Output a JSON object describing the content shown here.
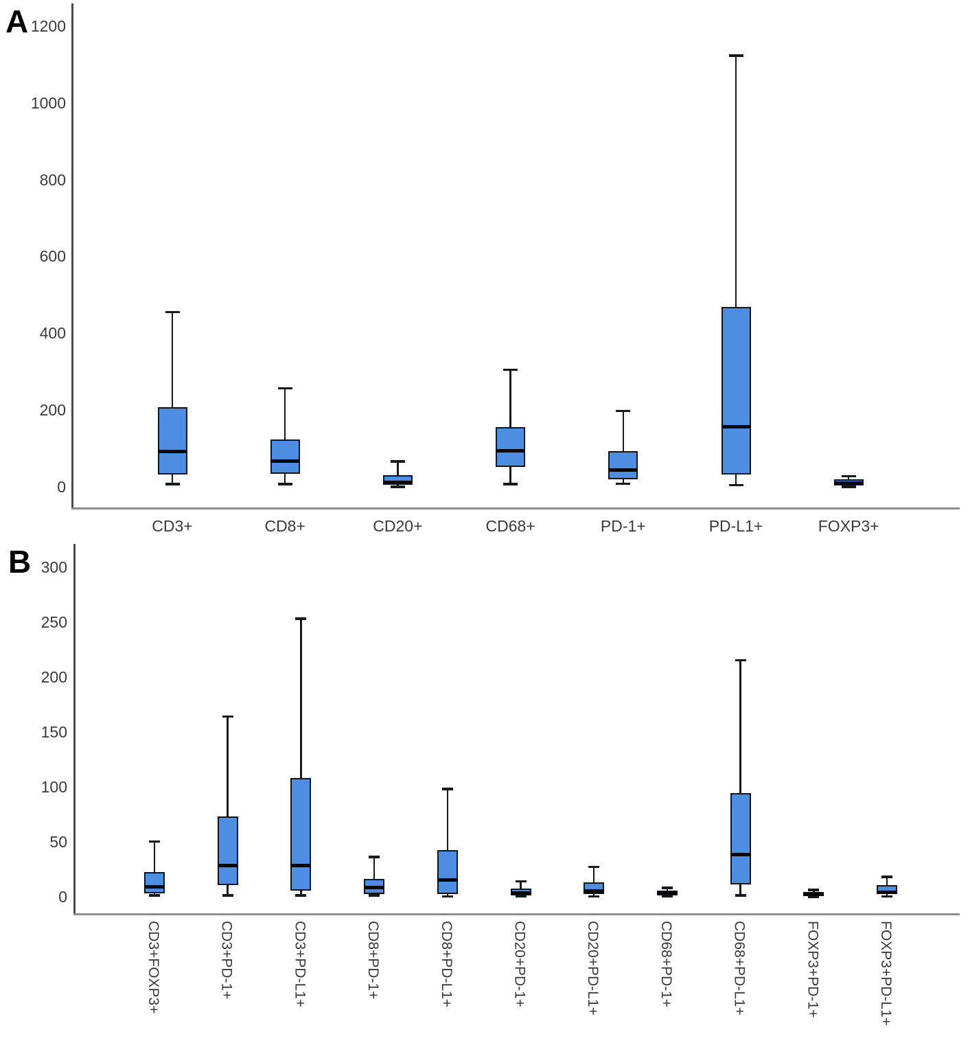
{
  "figure": {
    "panels": [
      {
        "label": "A"
      },
      {
        "label": "B"
      }
    ]
  },
  "style": {
    "box_fill": "#4D8EE3",
    "box_border": "#10151b",
    "median_color": "#04060a",
    "whisker_color": "#16191e",
    "axis_color": "#4a4a4a",
    "baseline_color": "#8e8e8e",
    "text_color": "#3a3a3a",
    "background": "#ffffff"
  },
  "chart_data": [
    {
      "type": "box",
      "panel": "A",
      "title": "",
      "xlabel": "",
      "ylabel": "",
      "grid": false,
      "legend": false,
      "ylim": [
        0,
        1260
      ],
      "yticks": [
        0,
        200,
        400,
        600,
        800,
        1000,
        1200
      ],
      "categories": [
        "CD3+",
        "CD8+",
        "CD20+",
        "CD68+",
        "PD-1+",
        "PD-L1+",
        "FOXP3+"
      ],
      "boxes": [
        {
          "category": "CD3+",
          "whisker_low": 9,
          "q1": 34,
          "median": 94,
          "q3": 209,
          "whisker_high": 457
        },
        {
          "category": "CD8+",
          "whisker_low": 9,
          "q1": 36,
          "median": 68,
          "q3": 125,
          "whisker_high": 259
        },
        {
          "category": "CD20+",
          "whisker_low": 2,
          "q1": 7,
          "median": 14,
          "q3": 32,
          "whisker_high": 68
        },
        {
          "category": "CD68+",
          "whisker_low": 9,
          "q1": 54,
          "median": 96,
          "q3": 157,
          "whisker_high": 307
        },
        {
          "category": "PD-1+",
          "whisker_low": 10,
          "q1": 21,
          "median": 45,
          "q3": 95,
          "whisker_high": 200
        },
        {
          "category": "PD-L1+",
          "whisker_low": 7,
          "q1": 34,
          "median": 159,
          "q3": 470,
          "whisker_high": 1125
        },
        {
          "category": "FOXP3+",
          "whisker_low": 2,
          "q1": 5,
          "median": 12,
          "q3": 21,
          "whisker_high": 30
        }
      ]
    },
    {
      "type": "box",
      "panel": "B",
      "title": "",
      "xlabel": "",
      "ylabel": "",
      "grid": false,
      "legend": false,
      "ylim": [
        0,
        322
      ],
      "yticks": [
        0,
        50,
        100,
        150,
        200,
        250,
        300
      ],
      "categories": [
        "CD3+FOXP3+",
        "CD3+PD-1+",
        "CD3+PD-L1+",
        "CD8+PD-1+",
        "CD8+PD-L1+",
        "CD20+PD-1+",
        "CD20+PD-L1+",
        "CD68+PD-1+",
        "CD68+PD-L1+",
        "FOXP3+PD-1+",
        "FOXP3+PD-L1+"
      ],
      "boxes": [
        {
          "category": "CD3+FOXP3+",
          "whisker_low": 2,
          "q1": 4,
          "median": 10,
          "q3": 23,
          "whisker_high": 51
        },
        {
          "category": "CD3+PD-1+",
          "whisker_low": 2,
          "q1": 11,
          "median": 29,
          "q3": 74,
          "whisker_high": 165
        },
        {
          "category": "CD3+PD-L1+",
          "whisker_low": 2,
          "q1": 6,
          "median": 29,
          "q3": 109,
          "whisker_high": 254
        },
        {
          "category": "CD8+PD-1+",
          "whisker_low": 2,
          "q1": 3,
          "median": 9,
          "q3": 17,
          "whisker_high": 37
        },
        {
          "category": "CD8+PD-L1+",
          "whisker_low": 1,
          "q1": 3,
          "median": 16,
          "q3": 43,
          "whisker_high": 99
        },
        {
          "category": "CD20+PD-1+",
          "whisker_low": 1,
          "q1": 2,
          "median": 4,
          "q3": 8,
          "whisker_high": 15
        },
        {
          "category": "CD20+PD-L1+",
          "whisker_low": 1,
          "q1": 3,
          "median": 6,
          "q3": 14,
          "whisker_high": 28
        },
        {
          "category": "CD68+PD-1+",
          "whisker_low": 1,
          "q1": 2,
          "median": 4,
          "q3": 6,
          "whisker_high": 9
        },
        {
          "category": "CD68+PD-L1+",
          "whisker_low": 2,
          "q1": 12,
          "median": 39,
          "q3": 95,
          "whisker_high": 216
        },
        {
          "category": "FOXP3+PD-1+",
          "whisker_low": 0.5,
          "q1": 1.5,
          "median": 3,
          "q3": 5,
          "whisker_high": 7
        },
        {
          "category": "FOXP3+PD-L1+",
          "whisker_low": 1,
          "q1": 3,
          "median": 5,
          "q3": 11,
          "whisker_high": 19
        }
      ]
    }
  ]
}
